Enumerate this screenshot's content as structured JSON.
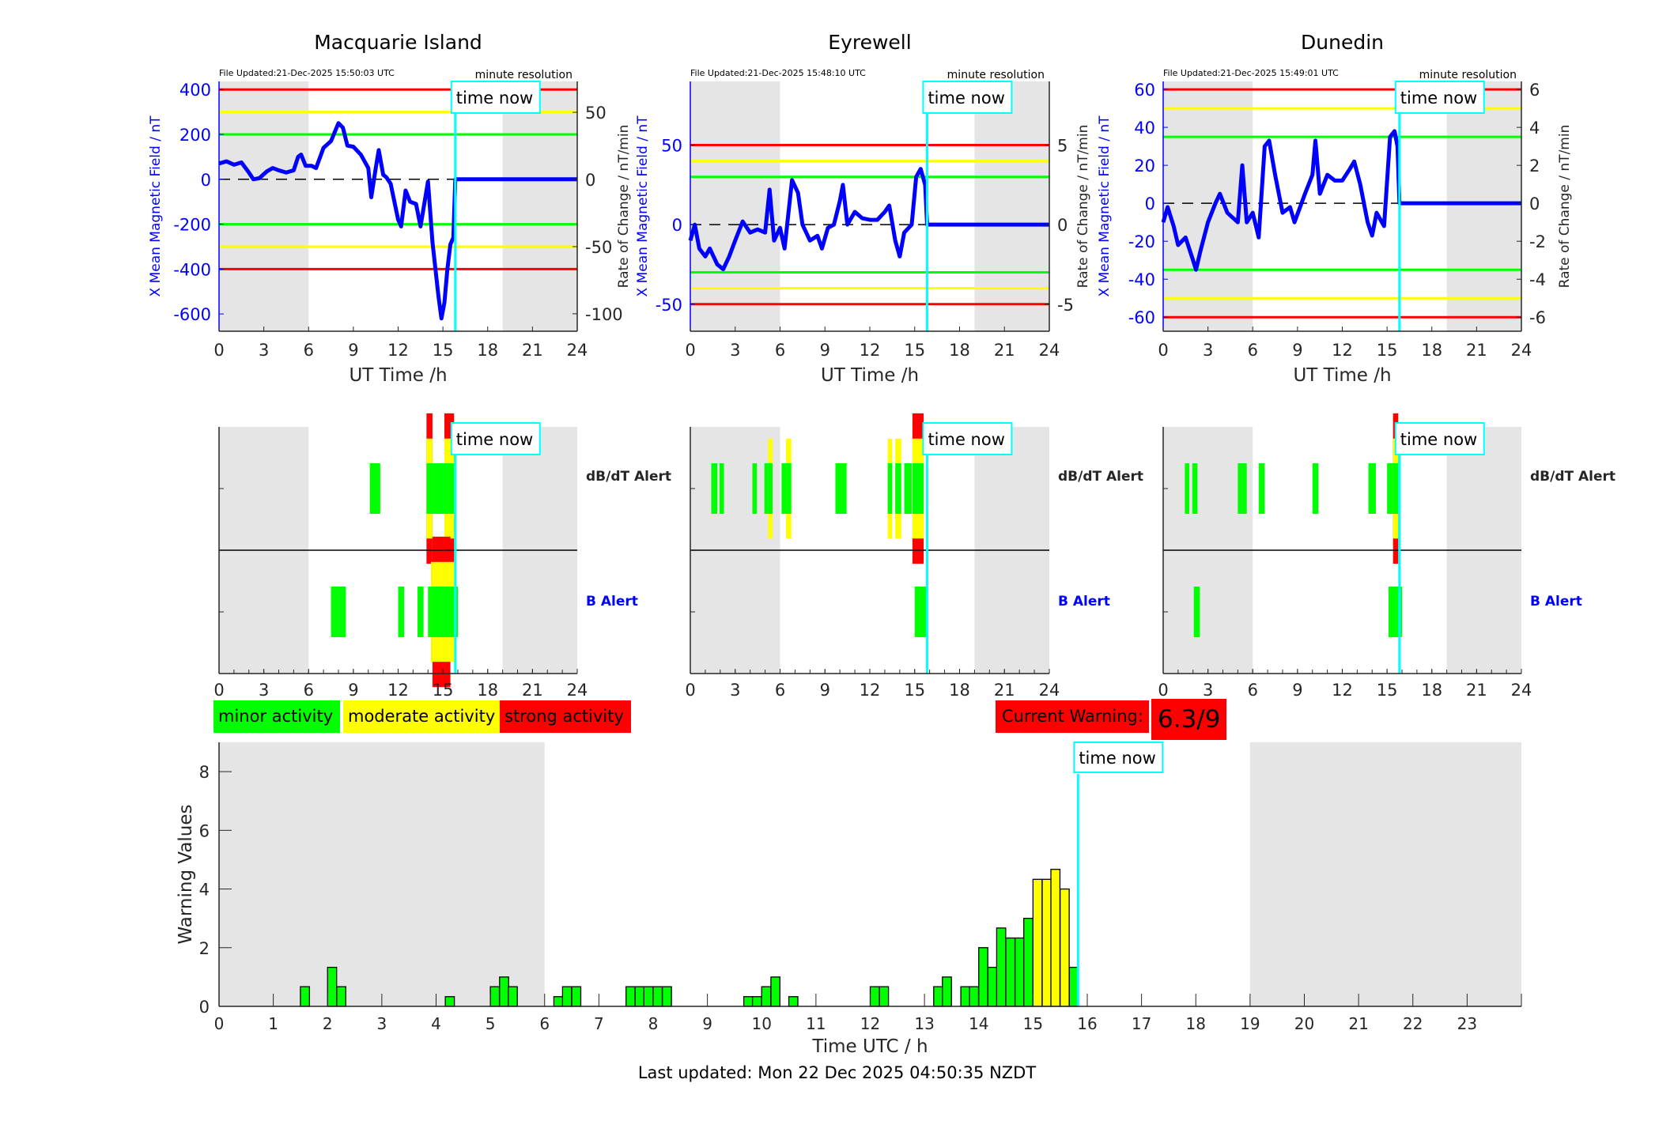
{
  "colors": {
    "green": "#00ff00",
    "yellow": "#ffff00",
    "red": "#ff0000",
    "blue": "#0000ff",
    "cyan": "#00ffff",
    "night": "#e5e5e5"
  },
  "time_now_label": "time now",
  "time_now_h": 15.83,
  "night_shading_h": [
    [
      0,
      6
    ],
    [
      19,
      24
    ]
  ],
  "legend": {
    "minor": "minor activity",
    "moderate": "moderate activity",
    "strong": "strong activity"
  },
  "current_warning": {
    "label": "Current Warning:",
    "value": "6.3/9"
  },
  "footer": {
    "last_updated": "Last updated: Mon 22 Dec 2025 04:50:35 NZDT"
  },
  "chart_data": [
    {
      "type": "line",
      "title": "Macquarie Island",
      "file_updated": "File Updated:21-Dec-2025 15:50:03 UTC",
      "resolution": "minute resolution",
      "xlabel": "UT Time /h",
      "ylabel": "X Mean Magnetic Field / nT",
      "ylabel_right": "Rate of Change / nT/min",
      "xlim": [
        0,
        24
      ],
      "xticks": [
        0,
        3,
        6,
        9,
        12,
        15,
        18,
        21,
        24
      ],
      "ylim": [
        -677,
        436
      ],
      "yticks": [
        -600,
        -400,
        -200,
        0,
        200,
        400
      ],
      "ylim_right": [
        -113,
        73
      ],
      "yticks_right": [
        -100,
        -50,
        0,
        50
      ],
      "thresholds": [
        {
          "value": 400,
          "level": "red"
        },
        {
          "value": 300,
          "level": "yellow"
        },
        {
          "value": 200,
          "level": "green"
        },
        {
          "value": -200,
          "level": "green"
        },
        {
          "value": -300,
          "level": "yellow"
        },
        {
          "value": -400,
          "level": "red"
        }
      ],
      "series": [
        {
          "x": [
            0,
            0.5,
            1,
            1.5,
            2,
            2.3,
            2.7,
            3.2,
            3.6,
            4,
            4.5,
            5,
            5.3,
            5.5,
            5.8,
            6.2,
            6.5,
            7,
            7.5,
            8,
            8.3,
            8.6,
            9,
            9.5,
            10,
            10.2,
            10.5,
            10.7,
            11,
            11.2,
            11.5,
            12,
            12.2,
            12.5,
            12.8,
            13.2,
            13.5,
            14,
            14.3,
            14.7,
            14.9,
            15.1,
            15.3,
            15.5,
            15.7,
            15.83,
            24
          ],
          "y": [
            70,
            80,
            65,
            75,
            30,
            0,
            5,
            35,
            50,
            40,
            30,
            40,
            100,
            110,
            60,
            60,
            50,
            140,
            170,
            250,
            230,
            150,
            145,
            110,
            50,
            -80,
            50,
            130,
            20,
            10,
            -20,
            -180,
            -210,
            -50,
            -100,
            -110,
            -210,
            -10,
            -280,
            -520,
            -620,
            -550,
            -400,
            -290,
            -260,
            0,
            0
          ]
        }
      ]
    },
    {
      "type": "line",
      "title": "Eyrewell",
      "file_updated": "File Updated:21-Dec-2025 15:48:10 UTC",
      "resolution": "minute resolution",
      "xlabel": "UT Time /h",
      "ylabel": "X Mean Magnetic Field / nT",
      "ylabel_right": "Rate of Change / nT/min",
      "xlim": [
        0,
        24
      ],
      "xticks": [
        0,
        3,
        6,
        9,
        12,
        15,
        18,
        21,
        24
      ],
      "ylim": [
        -67,
        90
      ],
      "yticks": [
        -50,
        0,
        50
      ],
      "ylim_right": [
        -6.7,
        9.0
      ],
      "yticks_right": [
        -5,
        0,
        5
      ],
      "thresholds": [
        {
          "value": 50,
          "level": "red"
        },
        {
          "value": 40,
          "level": "yellow"
        },
        {
          "value": 30,
          "level": "green"
        },
        {
          "value": -30,
          "level": "green"
        },
        {
          "value": -40,
          "level": "yellow"
        },
        {
          "value": -50,
          "level": "red"
        }
      ],
      "series": [
        {
          "x": [
            0,
            0.3,
            0.6,
            1,
            1.3,
            1.8,
            2.2,
            2.6,
            3,
            3.5,
            4,
            4.5,
            5,
            5.3,
            5.6,
            6,
            6.3,
            6.8,
            7.2,
            7.5,
            8,
            8.5,
            8.8,
            9.2,
            9.6,
            10,
            10.2,
            10.5,
            11,
            11.5,
            12,
            12.5,
            13,
            13.3,
            13.7,
            14,
            14.3,
            14.8,
            15.1,
            15.4,
            15.7,
            15.83,
            24
          ],
          "y": [
            -10,
            0,
            -15,
            -20,
            -15,
            -25,
            -28,
            -20,
            -10,
            2,
            -5,
            -3,
            -5,
            22,
            -10,
            -2,
            -15,
            28,
            20,
            0,
            -10,
            -7,
            -15,
            -2,
            0,
            15,
            25,
            0,
            8,
            4,
            3,
            3,
            8,
            12,
            -10,
            -20,
            -5,
            0,
            30,
            35,
            25,
            0,
            0
          ]
        }
      ]
    },
    {
      "type": "line",
      "title": "Dunedin",
      "file_updated": "File Updated:21-Dec-2025 15:49:01 UTC",
      "resolution": "minute resolution",
      "xlabel": "UT Time /h",
      "ylabel": "X Mean Magnetic Field / nT",
      "ylabel_right": "Rate of Change / nT/min",
      "xlim": [
        0,
        24
      ],
      "xticks": [
        0,
        3,
        6,
        9,
        12,
        15,
        18,
        21,
        24
      ],
      "ylim": [
        -67.4,
        64.2
      ],
      "yticks": [
        -60,
        -40,
        -20,
        0,
        20,
        40,
        60
      ],
      "ylim_right": [
        -6.74,
        6.42
      ],
      "yticks_right": [
        -6,
        -4,
        -2,
        0,
        2,
        4,
        6
      ],
      "thresholds": [
        {
          "value": 60,
          "level": "red"
        },
        {
          "value": 50,
          "level": "yellow"
        },
        {
          "value": 35,
          "level": "green"
        },
        {
          "value": -35,
          "level": "green"
        },
        {
          "value": -50,
          "level": "yellow"
        },
        {
          "value": -60,
          "level": "red"
        }
      ],
      "series": [
        {
          "x": [
            0,
            0.3,
            0.7,
            1,
            1.5,
            2,
            2.2,
            2.5,
            3,
            3.5,
            3.8,
            4.3,
            5,
            5.3,
            5.6,
            6,
            6.4,
            6.8,
            7.1,
            7.5,
            8,
            8.5,
            8.8,
            9.5,
            10,
            10.2,
            10.5,
            11,
            11.5,
            12,
            12.5,
            12.8,
            13.2,
            13.7,
            14,
            14.3,
            14.8,
            15.2,
            15.5,
            15.7,
            15.83,
            24
          ],
          "y": [
            -10,
            -2,
            -12,
            -22,
            -18,
            -30,
            -35,
            -25,
            -10,
            0,
            5,
            -5,
            -10,
            20,
            -10,
            -5,
            -18,
            30,
            33,
            15,
            -5,
            -2,
            -10,
            5,
            15,
            33,
            5,
            15,
            12,
            12,
            18,
            22,
            10,
            -10,
            -17,
            -5,
            -12,
            35,
            38,
            30,
            0,
            0
          ]
        }
      ]
    },
    {
      "type": "bar",
      "subtype": "alert-timeline",
      "station": "Macquarie Island",
      "xlim": [
        0,
        24
      ],
      "xticks": [
        0,
        3,
        6,
        9,
        12,
        15,
        18,
        21,
        24
      ],
      "rows": [
        {
          "label": "dB/dT Alert",
          "segments": [
            [
              10.1,
              10.8,
              1
            ],
            [
              13.9,
              14.3,
              3
            ],
            [
              14.3,
              15.1,
              1
            ],
            [
              15.1,
              15.75,
              3
            ]
          ]
        },
        {
          "label": "B Alert",
          "segments": [
            [
              7.5,
              8.5,
              1
            ],
            [
              12.0,
              12.4,
              1
            ],
            [
              13.3,
              13.7,
              1
            ],
            [
              14.0,
              14.2,
              1
            ],
            [
              14.2,
              14.3,
              2
            ],
            [
              14.3,
              15.5,
              3
            ],
            [
              15.5,
              15.75,
              2
            ],
            [
              15.75,
              16.0,
              1
            ]
          ]
        }
      ]
    },
    {
      "type": "bar",
      "subtype": "alert-timeline",
      "station": "Eyrewell",
      "xlim": [
        0,
        24
      ],
      "xticks": [
        0,
        3,
        6,
        9,
        12,
        15,
        18,
        21,
        24
      ],
      "rows": [
        {
          "label": "dB/dT Alert",
          "segments": [
            [
              1.4,
              1.8,
              1
            ],
            [
              1.95,
              2.25,
              1
            ],
            [
              4.15,
              4.45,
              1
            ],
            [
              4.95,
              5.2,
              1
            ],
            [
              5.2,
              5.5,
              2
            ],
            [
              6.1,
              6.4,
              1
            ],
            [
              6.4,
              6.75,
              2
            ],
            [
              9.7,
              10.45,
              1
            ],
            [
              13.2,
              13.5,
              2
            ],
            [
              13.7,
              14.1,
              2
            ],
            [
              14.3,
              14.8,
              1
            ],
            [
              14.85,
              15.6,
              3
            ]
          ]
        },
        {
          "label": "B Alert",
          "segments": [
            [
              15.0,
              15.8,
              1
            ]
          ]
        }
      ]
    },
    {
      "type": "bar",
      "subtype": "alert-timeline",
      "station": "Dunedin",
      "xlim": [
        0,
        24
      ],
      "xticks": [
        0,
        3,
        6,
        9,
        12,
        15,
        18,
        21,
        24
      ],
      "rows": [
        {
          "label": "dB/dT Alert",
          "segments": [
            [
              1.45,
              1.75,
              1
            ],
            [
              1.95,
              2.3,
              1
            ],
            [
              5.0,
              5.6,
              1
            ],
            [
              6.4,
              6.8,
              1
            ],
            [
              10.0,
              10.4,
              1
            ],
            [
              13.75,
              14.25,
              1
            ],
            [
              15.0,
              15.4,
              1
            ],
            [
              15.4,
              15.75,
              3
            ]
          ]
        },
        {
          "label": "B Alert",
          "segments": [
            [
              2.05,
              2.45,
              1
            ],
            [
              15.1,
              16.0,
              1
            ]
          ]
        }
      ]
    },
    {
      "type": "bar",
      "xlabel": "Time UTC / h",
      "ylabel": "Warning Values",
      "xlim": [
        0,
        24
      ],
      "ylim": [
        0,
        9
      ],
      "xticks": [
        0,
        1,
        2,
        3,
        4,
        5,
        6,
        7,
        8,
        9,
        10,
        11,
        12,
        13,
        14,
        15,
        16,
        17,
        18,
        19,
        20,
        21,
        22,
        23
      ],
      "yticks": [
        0,
        2,
        4,
        6,
        8
      ],
      "bin_width_h": 0.1667,
      "bars": [
        {
          "x": 1.5,
          "y": 0.67,
          "level": "green"
        },
        {
          "x": 2.0,
          "y": 1.33,
          "level": "green"
        },
        {
          "x": 2.17,
          "y": 0.67,
          "level": "green"
        },
        {
          "x": 4.17,
          "y": 0.33,
          "level": "green"
        },
        {
          "x": 5.0,
          "y": 0.67,
          "level": "green"
        },
        {
          "x": 5.17,
          "y": 1.0,
          "level": "green"
        },
        {
          "x": 5.33,
          "y": 0.67,
          "level": "green"
        },
        {
          "x": 6.17,
          "y": 0.33,
          "level": "green"
        },
        {
          "x": 6.33,
          "y": 0.67,
          "level": "green"
        },
        {
          "x": 6.5,
          "y": 0.67,
          "level": "green"
        },
        {
          "x": 7.5,
          "y": 0.67,
          "level": "green"
        },
        {
          "x": 7.67,
          "y": 0.67,
          "level": "green"
        },
        {
          "x": 7.83,
          "y": 0.67,
          "level": "green"
        },
        {
          "x": 8.0,
          "y": 0.67,
          "level": "green"
        },
        {
          "x": 8.17,
          "y": 0.67,
          "level": "green"
        },
        {
          "x": 9.67,
          "y": 0.33,
          "level": "green"
        },
        {
          "x": 9.83,
          "y": 0.33,
          "level": "green"
        },
        {
          "x": 10.0,
          "y": 0.67,
          "level": "green"
        },
        {
          "x": 10.17,
          "y": 1.0,
          "level": "green"
        },
        {
          "x": 10.5,
          "y": 0.33,
          "level": "green"
        },
        {
          "x": 12.0,
          "y": 0.67,
          "level": "green"
        },
        {
          "x": 12.17,
          "y": 0.67,
          "level": "green"
        },
        {
          "x": 13.17,
          "y": 0.67,
          "level": "green"
        },
        {
          "x": 13.33,
          "y": 1.0,
          "level": "green"
        },
        {
          "x": 13.67,
          "y": 0.67,
          "level": "green"
        },
        {
          "x": 13.83,
          "y": 0.67,
          "level": "green"
        },
        {
          "x": 14.0,
          "y": 2.0,
          "level": "green"
        },
        {
          "x": 14.17,
          "y": 1.33,
          "level": "green"
        },
        {
          "x": 14.33,
          "y": 2.67,
          "level": "green"
        },
        {
          "x": 14.5,
          "y": 2.33,
          "level": "green"
        },
        {
          "x": 14.67,
          "y": 2.33,
          "level": "green"
        },
        {
          "x": 14.83,
          "y": 3.0,
          "level": "green"
        },
        {
          "x": 15.0,
          "y": 4.33,
          "level": "yellow"
        },
        {
          "x": 15.17,
          "y": 4.33,
          "level": "yellow"
        },
        {
          "x": 15.33,
          "y": 4.67,
          "level": "yellow"
        },
        {
          "x": 15.5,
          "y": 4.0,
          "level": "yellow"
        },
        {
          "x": 15.67,
          "y": 1.33,
          "level": "green"
        }
      ]
    }
  ]
}
